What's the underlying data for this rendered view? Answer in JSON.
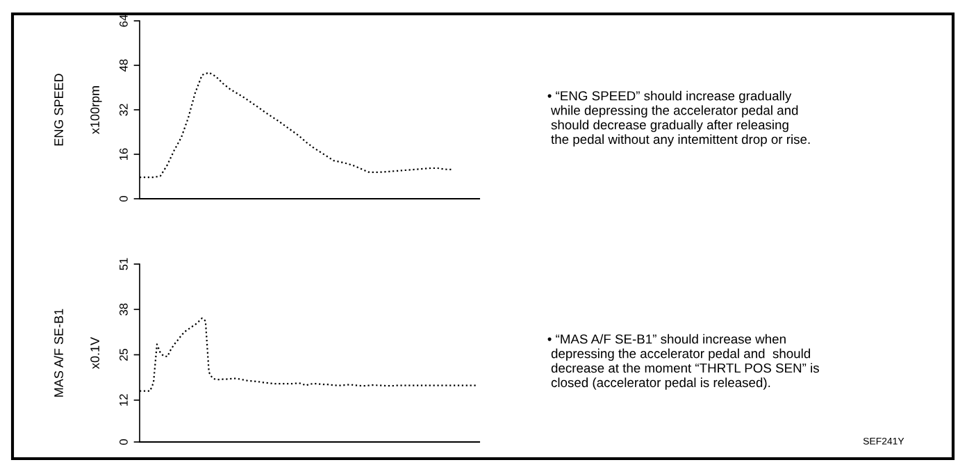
{
  "chart_data": [
    {
      "type": "line",
      "title": "ENG SPEED",
      "ylabel": "x100rpm",
      "categories": [
        null,
        null,
        null,
        null,
        null,
        null,
        null,
        null,
        null,
        null,
        null,
        null,
        null,
        null,
        null,
        null,
        null,
        null,
        null,
        null,
        null,
        null,
        null,
        null,
        null,
        null,
        null,
        null,
        null,
        null,
        null,
        null,
        null,
        null,
        null,
        null,
        null,
        null,
        null,
        null,
        null,
        null,
        null,
        null,
        null,
        null,
        null,
        null,
        null,
        null
      ],
      "values": [
        7.7,
        7.7,
        7.7,
        8.2,
        12.2,
        17.5,
        22,
        29,
        38,
        44.5,
        45.4,
        44,
        41.5,
        39.5,
        38,
        36.5,
        34.8,
        33.1,
        31.3,
        29.6,
        28,
        26.2,
        24.4,
        22.6,
        20.4,
        18.5,
        16.9,
        15.3,
        13.7,
        13.2,
        12.6,
        11.8,
        10.7,
        9.6,
        9.5,
        9.6,
        9.8,
        10,
        10.2,
        10.4,
        10.6,
        10.8,
        11,
        11,
        10.6,
        10.5,
        null,
        null,
        null,
        null
      ],
      "color": "#000000",
      "line_style": "dotted",
      "ylim": [
        0,
        64
      ],
      "yticks": [
        0,
        16,
        32,
        48,
        64
      ],
      "grid": false,
      "legend": false,
      "annotations": [
        "• “ENG SPEED” should increase gradually\n while depressing the accelerator pedal and\n should decrease gradually after releasing\n the pedal without any intemittent drop or rise."
      ]
    },
    {
      "type": "line",
      "title": "MAS A/F SE-B1",
      "ylabel": "x0.1V",
      "categories": [
        null,
        null,
        null,
        null,
        null,
        null,
        null,
        null,
        null,
        null,
        null,
        null,
        null,
        null,
        null,
        null,
        null,
        null,
        null,
        null,
        null,
        null,
        null,
        null,
        null,
        null,
        null,
        null,
        null,
        null,
        null,
        null,
        null,
        null,
        null,
        null,
        null,
        null,
        null,
        null,
        null,
        null,
        null,
        null,
        null,
        null,
        null,
        null,
        null,
        null,
        null,
        null,
        null,
        null,
        null,
        null,
        null,
        null,
        null,
        null,
        null,
        null,
        null,
        null,
        null,
        null,
        null,
        null,
        null,
        null,
        null,
        null,
        null,
        null,
        null,
        null,
        null,
        null,
        null,
        null,
        null,
        null,
        null,
        null,
        null,
        null,
        null,
        null,
        null,
        null,
        null,
        null,
        null,
        null,
        null,
        null,
        null,
        null,
        null
      ],
      "values": [
        14.6,
        14.6,
        14.6,
        14.6,
        17,
        28,
        25.5,
        24.6,
        24.5,
        26.5,
        28,
        29.2,
        30.5,
        31.6,
        32.3,
        33,
        33.6,
        34.5,
        35.5,
        34.7,
        20,
        18.3,
        17.9,
        17.9,
        18,
        18,
        18.1,
        18.2,
        18.2,
        18,
        17.8,
        17.6,
        17.5,
        17.4,
        17.3,
        17.2,
        17,
        16.9,
        16.8,
        16.7,
        16.7,
        16.7,
        16.7,
        16.7,
        16.7,
        16.8,
        16.9,
        16.6,
        16.2,
        16.6,
        16.7,
        16.7,
        16.6,
        16.5,
        16.5,
        16.4,
        16.3,
        16.2,
        16.2,
        16.3,
        16.4,
        16.4,
        16.3,
        16.2,
        16.1,
        16.1,
        16.2,
        16.3,
        16.3,
        16.2,
        16.2,
        16.1,
        16.1,
        16.1,
        16.2,
        16.2,
        16.2,
        16.2,
        16.2,
        16.2,
        16.2,
        16.2,
        16.2,
        16.2,
        16.2,
        16.2,
        16.2,
        16.2,
        16.2,
        16.2,
        16.2,
        16.2,
        16.2,
        16.2,
        16.2,
        16.2,
        16.2,
        16.2,
        null
      ],
      "color": "#000000",
      "line_style": "dotted",
      "ylim": [
        0,
        51
      ],
      "yticks": [
        0,
        12,
        25,
        38,
        51
      ],
      "grid": false,
      "legend": false,
      "annotations": [
        "• “MAS A/F SE-B1” should increase when\n depressing the accelerator pedal and  should\n decrease at the moment “THRTL POS SEN” is\n closed (accelerator pedal is released).",
        "SEF241Y"
      ]
    }
  ]
}
